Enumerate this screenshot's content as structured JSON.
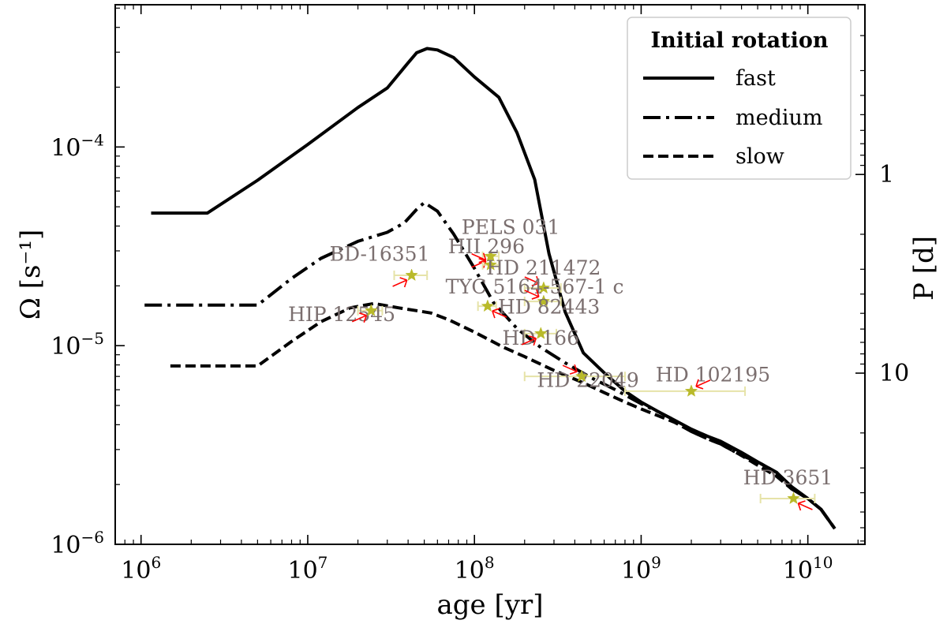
{
  "chart_data": {
    "type": "line",
    "xlabel": "age [yr]",
    "ylabel": "Ω [s⁻¹]",
    "y2label": "P [d]",
    "xscale": "log",
    "yscale": "log",
    "xlim": [
      700000,
      22000000000
    ],
    "ylim": [
      1e-06,
      0.00052
    ],
    "x_ticks": [
      {
        "value": 1000000,
        "base": "10",
        "exp": "6"
      },
      {
        "value": 10000000,
        "base": "10",
        "exp": "7"
      },
      {
        "value": 100000000,
        "base": "10",
        "exp": "8"
      },
      {
        "value": 1000000000,
        "base": "10",
        "exp": "9"
      },
      {
        "value": 10000000000,
        "base": "10",
        "exp": "10"
      }
    ],
    "y_ticks": [
      {
        "value": 1e-06,
        "base": "10",
        "exp": "−6"
      },
      {
        "value": 1e-05,
        "base": "10",
        "exp": "−5"
      },
      {
        "value": 0.0001,
        "base": "10",
        "exp": "−4"
      }
    ],
    "y2_ticks": [
      {
        "period_days": 1,
        "label": "1"
      },
      {
        "period_days": 10,
        "label": "10"
      }
    ],
    "legend": {
      "title": "Initial rotation",
      "position": "top-right"
    },
    "series": [
      {
        "name": "fast",
        "style": "solid",
        "points": [
          [
            1150000,
            4.65e-05
          ],
          [
            2500000,
            4.65e-05
          ],
          [
            5000000,
            6.8e-05
          ],
          [
            10000000,
            0.000103
          ],
          [
            20000000,
            0.000158
          ],
          [
            30000000,
            0.000198
          ],
          [
            40000000,
            0.000265
          ],
          [
            45000000,
            0.000298
          ],
          [
            52000000,
            0.000313
          ],
          [
            60000000,
            0.000308
          ],
          [
            75000000,
            0.000282
          ],
          [
            100000000,
            0.000225
          ],
          [
            140000000,
            0.000178
          ],
          [
            180000000,
            0.000118
          ],
          [
            230000000,
            6.85e-05
          ],
          [
            280000000,
            2.9e-05
          ],
          [
            350000000,
            1.48e-05
          ],
          [
            450000000,
            9.2e-06
          ],
          [
            600000000,
            7.3e-06
          ],
          [
            800000000,
            5.9e-06
          ],
          [
            1000000000,
            5.2e-06
          ],
          [
            1300000000,
            4.6e-06
          ],
          [
            1600000000,
            4.2e-06
          ],
          [
            2000000000,
            3.8e-06
          ],
          [
            2500000000,
            3.5e-06
          ],
          [
            3000000000,
            3.3e-06
          ],
          [
            4000000000,
            2.9e-06
          ],
          [
            5000000000,
            2.6e-06
          ],
          [
            6500000000,
            2.3e-06
          ],
          [
            8000000000,
            1.95e-06
          ],
          [
            10000000000,
            1.7e-06
          ],
          [
            12000000000,
            1.5e-06
          ],
          [
            14500000000,
            1.2e-06
          ]
        ]
      },
      {
        "name": "medium",
        "style": "dashdot",
        "points": [
          [
            1050000,
            1.6e-05
          ],
          [
            5000000,
            1.6e-05
          ],
          [
            8000000,
            2.18e-05
          ],
          [
            12000000,
            2.75e-05
          ],
          [
            20000000,
            3.35e-05
          ],
          [
            30000000,
            3.72e-05
          ],
          [
            38000000,
            4.15e-05
          ],
          [
            45000000,
            4.85e-05
          ],
          [
            50000000,
            5.25e-05
          ],
          [
            60000000,
            4.75e-05
          ],
          [
            75000000,
            3.65e-05
          ],
          [
            100000000,
            2.45e-05
          ],
          [
            130000000,
            1.65e-05
          ],
          [
            180000000,
            1.22e-05
          ],
          [
            250000000,
            9.8e-06
          ],
          [
            350000000,
            8.2e-06
          ],
          [
            500000000,
            6.9e-06
          ],
          [
            700000000,
            6e-06
          ],
          [
            1000000000,
            5.1e-06
          ],
          [
            1300000000,
            4.6e-06
          ],
          [
            1600000000,
            4.2e-06
          ],
          [
            2000000000,
            3.7e-06
          ],
          [
            2500000000,
            3.4e-06
          ],
          [
            3000000000,
            3.2e-06
          ],
          [
            4000000000,
            2.8e-06
          ],
          [
            5000000000,
            2.6e-06
          ],
          [
            6500000000,
            2.3e-06
          ],
          [
            8000000000,
            1.9e-06
          ],
          [
            10000000000,
            1.7e-06
          ],
          [
            12000000000,
            1.5e-06
          ],
          [
            14500000000,
            1.2e-06
          ]
        ]
      },
      {
        "name": "slow",
        "style": "dashed",
        "points": [
          [
            1500000,
            7.9e-06
          ],
          [
            5000000,
            7.9e-06
          ],
          [
            8000000,
            1.05e-05
          ],
          [
            12000000,
            1.32e-05
          ],
          [
            18000000,
            1.55e-05
          ],
          [
            25000000,
            1.63e-05
          ],
          [
            35000000,
            1.55e-05
          ],
          [
            45000000,
            1.5e-05
          ],
          [
            55000000,
            1.46e-05
          ],
          [
            70000000,
            1.35e-05
          ],
          [
            100000000,
            1.17e-05
          ],
          [
            150000000,
            9.8e-06
          ],
          [
            200000000,
            8.8e-06
          ],
          [
            300000000,
            7.5e-06
          ],
          [
            450000000,
            6.5e-06
          ],
          [
            600000000,
            5.8e-06
          ],
          [
            800000000,
            5.2e-06
          ],
          [
            1000000000,
            4.8e-06
          ],
          [
            1300000000,
            4.4e-06
          ],
          [
            1600000000,
            4.1e-06
          ],
          [
            2000000000,
            3.7e-06
          ],
          [
            2500000000,
            3.4e-06
          ],
          [
            3000000000,
            3.2e-06
          ],
          [
            4000000000,
            2.8e-06
          ],
          [
            5000000000,
            2.5e-06
          ],
          [
            6500000000,
            2.2e-06
          ],
          [
            8000000000,
            1.9e-06
          ],
          [
            10000000000,
            1.7e-06
          ],
          [
            12000000000,
            1.5e-06
          ],
          [
            14500000000,
            1.2e-06
          ]
        ]
      }
    ],
    "stars": [
      {
        "label": "PELS 031",
        "age": 125000000,
        "omega": 2.82e-05,
        "age_err": [
          112000000,
          140000000
        ],
        "label_at": [
          165000000,
          3.65e-05
        ],
        "arrow_dir": [
          -1,
          1
        ]
      },
      {
        "label": "HII 296",
        "age": 125000000,
        "omega": 2.55e-05,
        "age_err": [
          112000000,
          140000000
        ],
        "label_at": [
          118000000,
          2.92e-05
        ],
        "arrow_dir": [
          -1,
          -1
        ]
      },
      {
        "label": "BD-16351",
        "age": 42000000,
        "omega": 2.26e-05,
        "age_err": [
          33000000,
          52000000
        ],
        "label_at": [
          27000000,
          2.68e-05
        ],
        "arrow_dir": [
          -1,
          1
        ]
      },
      {
        "label": "HD 211472",
        "age": 260000000,
        "omega": 1.95e-05,
        "age_err": [
          200000000,
          330000000
        ],
        "label_at": [
          260000000,
          2.28e-05
        ],
        "arrow_dir": [
          -1,
          -1
        ]
      },
      {
        "label": "TYC 5164-567-1 c",
        "age": 260000000,
        "omega": 1.67e-05,
        "age_err": [
          200000000,
          330000000
        ],
        "label_at": [
          230000000,
          1.83e-05
        ],
        "arrow_dir": [
          -1,
          -1
        ]
      },
      {
        "label": "HD 82443",
        "age": 120000000,
        "omega": 1.58e-05,
        "age_err": [
          105000000,
          135000000
        ],
        "label_at": [
          280000000,
          1.45e-05
        ],
        "arrow_dir": [
          1,
          1
        ]
      },
      {
        "label": "HIP 12545",
        "age": 24000000,
        "omega": 1.5e-05,
        "age_err": [
          20000000,
          28000000
        ],
        "label_at": [
          16000000,
          1.33e-05
        ],
        "arrow_dir": [
          -1,
          1
        ]
      },
      {
        "label": "HD 166",
        "age": 250000000,
        "omega": 1.15e-05,
        "age_err": [
          200000000,
          310000000
        ],
        "label_at": [
          250000000,
          1.01e-05
        ],
        "arrow_dir": [
          -1,
          1
        ]
      },
      {
        "label": "HD 22049",
        "age": 440000000,
        "omega": 7e-06,
        "age_err": [
          200000000,
          800000000
        ],
        "label_at": [
          480000000,
          6.2e-06
        ],
        "arrow_dir": [
          -1,
          -1
        ]
      },
      {
        "label": "HD 102195",
        "age": 2000000000,
        "omega": 5.9e-06,
        "age_err": [
          800000000,
          4200000000
        ],
        "label_at": [
          2700000000,
          6.6e-06
        ],
        "arrow_dir": [
          1,
          -1
        ]
      },
      {
        "label": "HD 3651",
        "age": 8200000000,
        "omega": 1.7e-06,
        "age_err": [
          5200000000,
          11000000000
        ],
        "label_at": [
          7600000000,
          2e-06
        ],
        "arrow_dir": [
          1,
          1
        ]
      }
    ]
  }
}
